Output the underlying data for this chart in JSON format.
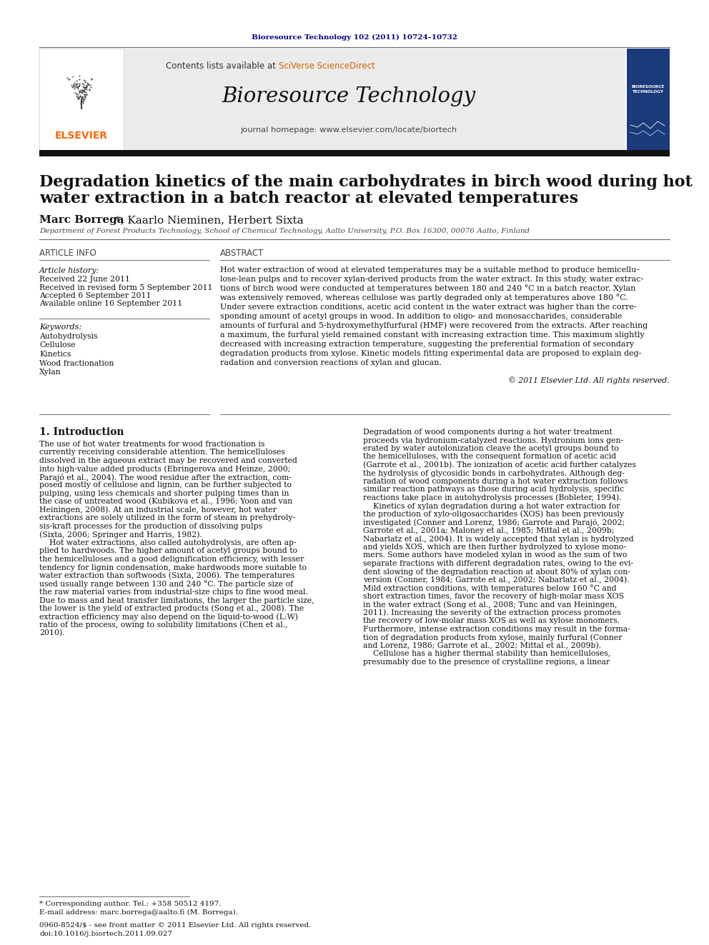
{
  "page_bg": "#ffffff",
  "top_journal_ref": "Bioresource Technology 102 (2011) 10724–10732",
  "top_journal_ref_color": "#000080",
  "header_bg": "#e8e8e8",
  "journal_title": "Bioresource Technology",
  "journal_homepage": "journal homepage: www.elsevier.com/locate/biortech",
  "article_title_line1": "Degradation kinetics of the main carbohydrates in birch wood during hot",
  "article_title_line2": "water extraction in a batch reactor at elevated temperatures",
  "authors_bold": "Marc Borrega",
  "authors_rest": "*, Kaarlo Nieminen, Herbert Sixta",
  "affiliation": "Department of Forest Products Technology, School of Chemical Technology, Aalto University, P.O. Box 16300, 00076 Aalto, Finland",
  "section_article_info": "ARTICLE INFO",
  "section_abstract": "ABSTRACT",
  "article_history_label": "Article history:",
  "article_history": [
    "Received 22 June 2011",
    "Received in revised form 5 September 2011",
    "Accepted 6 September 2011",
    "Available online 16 September 2011"
  ],
  "keywords_label": "Keywords:",
  "keywords": [
    "Autohydrolysis",
    "Cellulose",
    "Kinetics",
    "Wood fractionation",
    "Xylan"
  ],
  "abstract_text": [
    "Hot water extraction of wood at elevated temperatures may be a suitable method to produce hemicellu-",
    "lose-lean pulps and to recover xylan-derived products from the water extract. In this study, water extrac-",
    "tions of birch wood were conducted at temperatures between 180 and 240 °C in a batch reactor. Xylan",
    "was extensively removed, whereas cellulose was partly degraded only at temperatures above 180 °C.",
    "Under severe extraction conditions, acetic acid content in the water extract was higher than the corre-",
    "sponding amount of acetyl groups in wood. In addition to oligo- and monosaccharides, considerable",
    "amounts of furfural and 5-hydroxymethylfurfural (HMF) were recovered from the extracts. After reaching",
    "a maximum, the furfural yield remained constant with increasing extraction time. This maximum slightly",
    "decreased with increasing extraction temperature, suggesting the preferential formation of secondary",
    "degradation products from xylose. Kinetic models fitting experimental data are proposed to explain deg-",
    "radation and conversion reactions of xylan and glucan."
  ],
  "copyright_text": "© 2011 Elsevier Ltd. All rights reserved.",
  "intro_heading": "1. Introduction",
  "intro_col1": [
    "The use of hot water treatments for wood fractionation is",
    "currently receiving considerable attention. The hemicelluloses",
    "dissolved in the aqueous extract may be recovered and converted",
    "into high-value added products (Ebringerova and Heinze, 2000;",
    "Parajó et al., 2004). The wood residue after the extraction, com-",
    "posed mostly of cellulose and lignin, can be further subjected to",
    "pulping, using less chemicals and shorter pulping times than in",
    "the case of untreated wood (Kubikova et al., 1996; Yoon and van",
    "Heiningen, 2008). At an industrial scale, however, hot water",
    "extractions are solely utilized in the form of steam in prehydroly-",
    "sis-kraft processes for the production of dissolving pulps",
    "(Sixta, 2006; Springer and Harris, 1982).",
    "    Hot water extractions, also called autohydrolysis, are often ap-",
    "plied to hardwoods. The higher amount of acetyl groups bound to",
    "the hemicelluloses and a good delignification efficiency, with lesser",
    "tendency for lignin condensation, make hardwoods more suitable to",
    "water extraction than softwoods (Sixta, 2006). The temperatures",
    "used usually range between 130 and 240 °C. The particle size of",
    "the raw material varies from industrial-size chips to fine wood meal.",
    "Due to mass and heat transfer limitations, the larger the particle size,",
    "the lower is the yield of extracted products (Song et al., 2008). The",
    "extraction efficiency may also depend on the liquid-to-wood (L:W)",
    "ratio of the process, owing to solubility limitations (Chen et al.,",
    "2010)."
  ],
  "intro_col2": [
    "Degradation of wood components during a hot water treatment",
    "proceeds via hydronium-catalyzed reactions. Hydronium ions gen-",
    "erated by water autolonization cleave the acetyl groups bound to",
    "the hemicelluloses, with the consequent formation of acetic acid",
    "(Garrote et al., 2001b). The ionization of acetic acid further catalyzes",
    "the hydrolysis of glycosidic bonds in carbohydrates. Although deg-",
    "radation of wood components during a hot water extraction follows",
    "similar reaction pathways as those during acid hydrolysis, specific",
    "reactions take place in autohydrolysis processes (Bobleter, 1994).",
    "    Kinetics of xylan degradation during a hot water extraction for",
    "the production of xylo-oligosaccharides (XOS) has been previously",
    "investigated (Conner and Lorenz, 1986; Garrote and Parajó, 2002;",
    "Garrote et al., 2001a; Maloney et al., 1985; Mittal et al., 2009b;",
    "Nabarlatz et al., 2004). It is widely accepted that xylan is hydrolyzed",
    "and yields XOS, which are then further hydrolyzed to xylose mono-",
    "mers. Some authors have modeled xylan in wood as the sum of two",
    "separate fractions with different degradation rates, owing to the evi-",
    "dent slowing of the degradation reaction at about 80% of xylan con-",
    "version (Conner, 1984; Garrote et al., 2002; Nabarlatz et al., 2004).",
    "Mild extraction conditions, with temperatures below 160 °C and",
    "short extraction times, favor the recovery of high-molar mass XOS",
    "in the water extract (Song et al., 2008; Tunc and van Heiningen,",
    "2011). Increasing the severity of the extraction process promotes",
    "the recovery of low-molar mass XOS as well as xylose monomers.",
    "Furthermore, intense extraction conditions may result in the forma-",
    "tion of degradation products from xylose, mainly furfural (Conner",
    "and Lorenz, 1986; Garrote et al., 2002; Mittal et al., 2009b).",
    "    Cellulose has a higher thermal stability than hemicelluloses,",
    "presumably due to the presence of crystalline regions, a linear"
  ],
  "footnote1": "* Corresponding author. Tel.: +358 50512 4197.",
  "footnote2": "E-mail address: marc.borrega@aalto.fi (M. Borrega).",
  "footnote3": "0960-8524/$ - see front matter © 2011 Elsevier Ltd. All rights reserved.",
  "footnote4": "doi:10.1016/j.biortech.2011.09.027",
  "elsevier_color": "#ff6600",
  "link_color": "#0000cc"
}
